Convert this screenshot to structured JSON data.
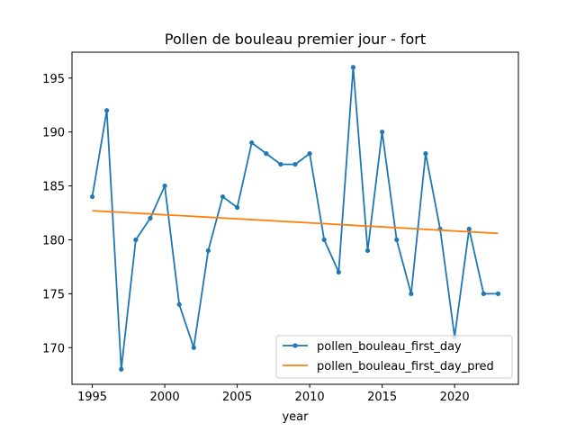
{
  "chart_data": {
    "type": "line",
    "title": "Pollen de bouleau premier jour - fort",
    "xlabel": "year",
    "ylabel": "",
    "xlim": [
      1993.6,
      2024.4
    ],
    "ylim": [
      166.6,
      197.4
    ],
    "xticks": [
      1995,
      2000,
      2005,
      2010,
      2015,
      2020
    ],
    "yticks": [
      170,
      175,
      180,
      185,
      190,
      195
    ],
    "grid": false,
    "legend_position": "lower-right",
    "x": [
      1995,
      1996,
      1997,
      1998,
      1999,
      2000,
      2001,
      2002,
      2003,
      2004,
      2005,
      2006,
      2007,
      2008,
      2009,
      2010,
      2011,
      2012,
      2013,
      2014,
      2015,
      2016,
      2017,
      2018,
      2019,
      2020,
      2021,
      2022,
      2023
    ],
    "series": [
      {
        "name": "pollen_bouleau_first_day",
        "color": "#1f77b4",
        "marker": "circle",
        "values": [
          184,
          192,
          168,
          180,
          182,
          185,
          174,
          170,
          179,
          184,
          183,
          189,
          188,
          187,
          187,
          188,
          180,
          177,
          196,
          179,
          190,
          180,
          175,
          188,
          181,
          171,
          181,
          175,
          175
        ]
      },
      {
        "name": "pollen_bouleau_first_day_pred",
        "color": "#ff7f0e",
        "marker": "none",
        "values": [
          182.7,
          182.62,
          182.55,
          182.47,
          182.4,
          182.32,
          182.25,
          182.17,
          182.1,
          182.02,
          181.95,
          181.87,
          181.8,
          181.72,
          181.65,
          181.57,
          181.5,
          181.42,
          181.35,
          181.27,
          181.2,
          181.12,
          181.05,
          180.97,
          180.9,
          180.82,
          180.75,
          180.67,
          180.6
        ]
      }
    ]
  }
}
